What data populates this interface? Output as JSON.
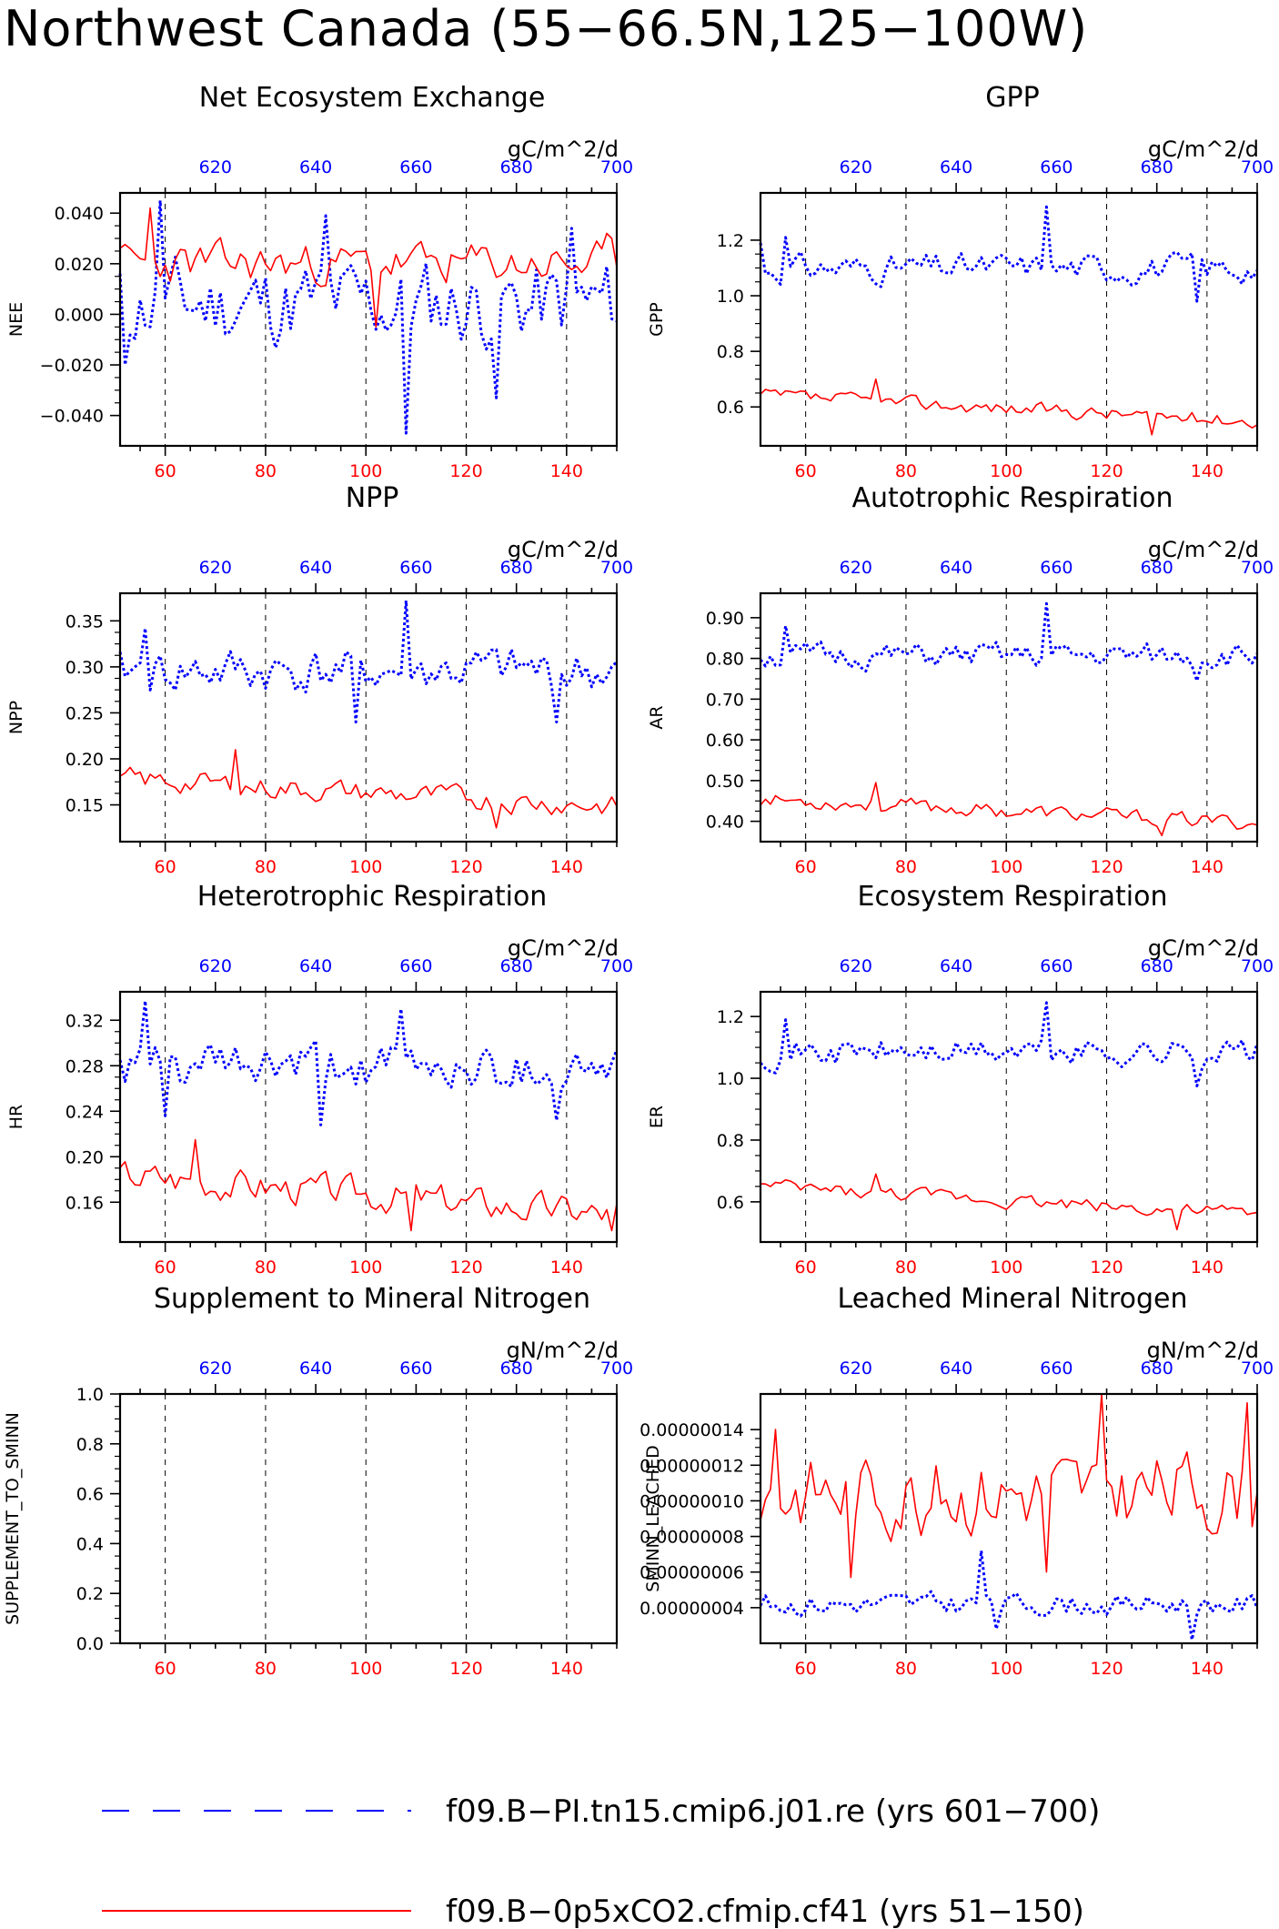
{
  "title": "Northwest Canada (55−66.5N,125−100W)",
  "colors": {
    "ctrl": "#0000ff",
    "exp": "#ff0000",
    "axis": "#000000",
    "grid": "#000000"
  },
  "legend": {
    "ctrl_label": "f09.B−PI.tn15.cmip6.j01.re (yrs 601−700)",
    "exp_label": "f09.B−0p5xCO2.cfmip.cf41 (yrs 51−150)"
  },
  "chart_data": [
    {
      "type": "line",
      "id": "nee",
      "title": "Net Ecosystem Exchange",
      "units": "gC/m^2/d",
      "ylabel": "NEE",
      "ylim": [
        -0.052,
        0.048
      ],
      "yticks": [
        -0.04,
        -0.02,
        0.0,
        0.02,
        0.04
      ],
      "ytick_labels": [
        "−0.040",
        "−0.020",
        "0.000",
        "0.020",
        "0.040"
      ],
      "xlim_bottom": [
        51,
        150
      ],
      "xticks_bottom": [
        60,
        80,
        100,
        120,
        140
      ],
      "xlim_top": [
        601,
        700
      ],
      "xticks_top": [
        620,
        640,
        660,
        680,
        700
      ],
      "series": [
        {
          "key": "ctrl",
          "seed": 11,
          "base": 0.004,
          "amp": 0.017,
          "trend": 0.0,
          "spikes": [
            [
              8,
              0.045
            ],
            [
              57,
              -0.047
            ],
            [
              41,
              0.039
            ],
            [
              75,
              -0.033
            ],
            [
              90,
              0.034
            ],
            [
              1,
              -0.02
            ]
          ]
        },
        {
          "key": "exp",
          "seed": 23,
          "base": 0.02,
          "amp": 0.008,
          "trend": 0.0,
          "spikes": [
            [
              6,
              0.042
            ],
            [
              51,
              -0.005
            ],
            [
              97,
              0.032
            ]
          ]
        }
      ]
    },
    {
      "type": "line",
      "id": "gpp",
      "title": "GPP",
      "units": "gC/m^2/d",
      "ylabel": "GPP",
      "ylim": [
        0.46,
        1.37
      ],
      "yticks": [
        0.6,
        0.8,
        1.0,
        1.2
      ],
      "ytick_labels": [
        "0.6",
        "0.8",
        "1.0",
        "1.2"
      ],
      "xlim_bottom": [
        51,
        150
      ],
      "xticks_bottom": [
        60,
        80,
        100,
        120,
        140
      ],
      "xlim_top": [
        601,
        700
      ],
      "xticks_top": [
        620,
        640,
        660,
        680,
        700
      ],
      "series": [
        {
          "key": "ctrl",
          "seed": 31,
          "base": 1.1,
          "amp": 0.05,
          "trend": 0.0,
          "spikes": [
            [
              57,
              1.32
            ],
            [
              0,
              1.19
            ],
            [
              5,
              1.21
            ],
            [
              87,
              0.98
            ]
          ]
        },
        {
          "key": "exp",
          "seed": 37,
          "base": 0.64,
          "amp": 0.025,
          "trend": -0.09,
          "spikes": [
            [
              23,
              0.7
            ],
            [
              78,
              0.5
            ]
          ]
        }
      ]
    },
    {
      "type": "line",
      "id": "npp",
      "title": "NPP",
      "units": "gC/m^2/d",
      "ylabel": "NPP",
      "ylim": [
        0.11,
        0.38
      ],
      "yticks": [
        0.15,
        0.2,
        0.25,
        0.3,
        0.35
      ],
      "ytick_labels": [
        "0.15",
        "0.20",
        "0.25",
        "0.30",
        "0.35"
      ],
      "xlim_bottom": [
        51,
        150
      ],
      "xticks_bottom": [
        60,
        80,
        100,
        120,
        140
      ],
      "xlim_top": [
        601,
        700
      ],
      "xticks_top": [
        620,
        640,
        660,
        680,
        700
      ],
      "series": [
        {
          "key": "ctrl",
          "seed": 41,
          "base": 0.295,
          "amp": 0.025,
          "trend": 0.0,
          "spikes": [
            [
              57,
              0.372
            ],
            [
              5,
              0.342
            ],
            [
              47,
              0.24
            ],
            [
              87,
              0.24
            ]
          ]
        },
        {
          "key": "exp",
          "seed": 43,
          "base": 0.178,
          "amp": 0.012,
          "trend": -0.03,
          "spikes": [
            [
              23,
              0.21
            ],
            [
              75,
              0.125
            ]
          ]
        }
      ]
    },
    {
      "type": "line",
      "id": "ar",
      "title": "Autotrophic Respiration",
      "units": "gC/m^2/d",
      "ylabel": "AR",
      "ylim": [
        0.35,
        0.96
      ],
      "yticks": [
        0.4,
        0.5,
        0.6,
        0.7,
        0.8,
        0.9
      ],
      "ytick_labels": [
        "0.40",
        "0.50",
        "0.60",
        "0.70",
        "0.80",
        "0.90"
      ],
      "xlim_bottom": [
        51,
        150
      ],
      "xticks_bottom": [
        60,
        80,
        100,
        120,
        140
      ],
      "xlim_top": [
        601,
        700
      ],
      "xticks_top": [
        620,
        640,
        660,
        680,
        700
      ],
      "series": [
        {
          "key": "ctrl",
          "seed": 51,
          "base": 0.805,
          "amp": 0.03,
          "trend": 0.0,
          "spikes": [
            [
              57,
              0.935
            ],
            [
              5,
              0.88
            ],
            [
              87,
              0.745
            ]
          ]
        },
        {
          "key": "exp",
          "seed": 53,
          "base": 0.455,
          "amp": 0.018,
          "trend": -0.06,
          "spikes": [
            [
              23,
              0.495
            ],
            [
              80,
              0.365
            ]
          ]
        }
      ]
    },
    {
      "type": "line",
      "id": "hr",
      "title": "Heterotrophic Respiration",
      "units": "gC/m^2/d",
      "ylabel": "HR",
      "ylim": [
        0.125,
        0.345
      ],
      "yticks": [
        0.16,
        0.2,
        0.24,
        0.28,
        0.32
      ],
      "ytick_labels": [
        "0.16",
        "0.20",
        "0.24",
        "0.28",
        "0.32"
      ],
      "xlim_bottom": [
        51,
        150
      ],
      "xticks_bottom": [
        60,
        80,
        100,
        120,
        140
      ],
      "xlim_top": [
        601,
        700
      ],
      "xticks_top": [
        620,
        640,
        660,
        680,
        700
      ],
      "series": [
        {
          "key": "ctrl",
          "seed": 61,
          "base": 0.278,
          "amp": 0.02,
          "trend": 0.0,
          "spikes": [
            [
              5,
              0.337
            ],
            [
              56,
              0.33
            ],
            [
              9,
              0.236
            ],
            [
              40,
              0.228
            ],
            [
              87,
              0.232
            ]
          ]
        },
        {
          "key": "exp",
          "seed": 67,
          "base": 0.185,
          "amp": 0.014,
          "trend": -0.035,
          "spikes": [
            [
              15,
              0.215
            ],
            [
              58,
              0.135
            ],
            [
              98,
              0.135
            ]
          ]
        }
      ]
    },
    {
      "type": "line",
      "id": "er",
      "title": "Ecosystem Respiration",
      "units": "gC/m^2/d",
      "ylabel": "ER",
      "ylim": [
        0.47,
        1.28
      ],
      "yticks": [
        0.6,
        0.8,
        1.0,
        1.2
      ],
      "ytick_labels": [
        "0.6",
        "0.8",
        "1.0",
        "1.2"
      ],
      "xlim_bottom": [
        51,
        150
      ],
      "xticks_bottom": [
        60,
        80,
        100,
        120,
        140
      ],
      "xlim_top": [
        601,
        700
      ],
      "xticks_top": [
        620,
        640,
        660,
        680,
        700
      ],
      "series": [
        {
          "key": "ctrl",
          "seed": 71,
          "base": 1.085,
          "amp": 0.045,
          "trend": 0.0,
          "spikes": [
            [
              57,
              1.245
            ],
            [
              5,
              1.19
            ],
            [
              87,
              0.975
            ]
          ]
        },
        {
          "key": "exp",
          "seed": 73,
          "base": 0.65,
          "amp": 0.022,
          "trend": -0.09,
          "spikes": [
            [
              23,
              0.69
            ],
            [
              83,
              0.51
            ]
          ]
        }
      ]
    },
    {
      "type": "line",
      "id": "sup",
      "title": "Supplement to Mineral Nitrogen",
      "units": "gN/m^2/d",
      "ylabel": "SUPPLEMENT_TO_SMINN",
      "ylim": [
        0.0,
        1.0
      ],
      "yticks": [
        0.0,
        0.2,
        0.4,
        0.6,
        0.8,
        1.0
      ],
      "ytick_labels": [
        "0.0",
        "0.2",
        "0.4",
        "0.6",
        "0.8",
        "1.0"
      ],
      "xlim_bottom": [
        51,
        150
      ],
      "xticks_bottom": [
        60,
        80,
        100,
        120,
        140
      ],
      "xlim_top": [
        601,
        700
      ],
      "xticks_top": [
        620,
        640,
        660,
        680,
        700
      ],
      "series": []
    },
    {
      "type": "line",
      "id": "leach",
      "title": "Leached Mineral Nitrogen",
      "units": "gN/m^2/d",
      "ylabel": "SMINN_LEACHED",
      "ylim": [
        2e-08,
        1.6e-07
      ],
      "yticks": [
        4e-08,
        6e-08,
        8e-08,
        1e-07,
        1.2e-07,
        1.4e-07
      ],
      "ytick_labels": [
        "0.00000004",
        "0.00000006",
        "0.00000008",
        "0.00000010",
        "0.00000012",
        "0.00000014"
      ],
      "xlim_bottom": [
        51,
        150
      ],
      "xticks_bottom": [
        60,
        80,
        100,
        120,
        140
      ],
      "xlim_top": [
        601,
        700
      ],
      "xticks_top": [
        620,
        640,
        660,
        680,
        700
      ],
      "series": [
        {
          "key": "ctrl",
          "seed": 81,
          "base": 4.2e-08,
          "amp": 6e-09,
          "trend": 0.0,
          "spikes": [
            [
              44,
              7.2e-08
            ],
            [
              86,
              2.2e-08
            ],
            [
              47,
              2.8e-08
            ]
          ]
        },
        {
          "key": "exp",
          "seed": 83,
          "base": 1.05e-07,
          "amp": 2.2e-08,
          "trend": 0.0,
          "spikes": [
            [
              68,
              1.6e-07
            ],
            [
              97,
              1.55e-07
            ],
            [
              18,
              5.7e-08
            ],
            [
              57,
              6e-08
            ],
            [
              3,
              1.4e-07
            ]
          ]
        }
      ]
    }
  ]
}
